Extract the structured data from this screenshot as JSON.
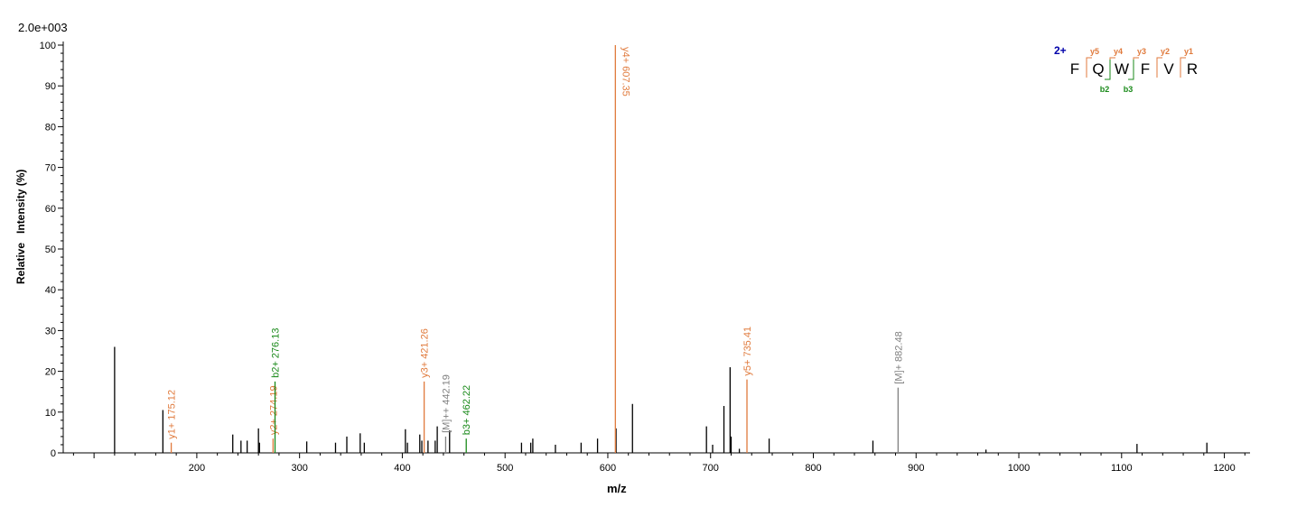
{
  "scale_label": "2.0e+003",
  "chart_data": {
    "type": "bar",
    "subtype": "mass-spectrum",
    "xlabel": "m/z",
    "ylabel": "Relative   Intensity (%)",
    "xlim": [
      70,
      1225
    ],
    "ylim": [
      0,
      100
    ],
    "x_ticks": [
      200,
      300,
      400,
      500,
      600,
      700,
      800,
      900,
      1000,
      1100,
      1200
    ],
    "y_ticks": [
      0,
      10,
      20,
      30,
      40,
      50,
      60,
      70,
      80,
      90,
      100
    ],
    "grid": false,
    "colors": {
      "y": "#e07a3c",
      "b": "#1a8a1a",
      "M": "#808080",
      "unlabeled": "#000000",
      "charge": "#0000aa"
    },
    "peaks": [
      {
        "mz": 120,
        "intensity": 26
      },
      {
        "mz": 167,
        "intensity": 10.5
      },
      {
        "mz": 235,
        "intensity": 4.5
      },
      {
        "mz": 243,
        "intensity": 3
      },
      {
        "mz": 249,
        "intensity": 3
      },
      {
        "mz": 260,
        "intensity": 6
      },
      {
        "mz": 261,
        "intensity": 2.5
      },
      {
        "mz": 307,
        "intensity": 2.8
      },
      {
        "mz": 335,
        "intensity": 2.5
      },
      {
        "mz": 346,
        "intensity": 4
      },
      {
        "mz": 359,
        "intensity": 4.8
      },
      {
        "mz": 363,
        "intensity": 2.5
      },
      {
        "mz": 403,
        "intensity": 5.8
      },
      {
        "mz": 405,
        "intensity": 2.5
      },
      {
        "mz": 417,
        "intensity": 4.5
      },
      {
        "mz": 419,
        "intensity": 3
      },
      {
        "mz": 425,
        "intensity": 3
      },
      {
        "mz": 432,
        "intensity": 3
      },
      {
        "mz": 434,
        "intensity": 6.5
      },
      {
        "mz": 446,
        "intensity": 5.5
      },
      {
        "mz": 516,
        "intensity": 2.5
      },
      {
        "mz": 525,
        "intensity": 2.5
      },
      {
        "mz": 527,
        "intensity": 3.5
      },
      {
        "mz": 549,
        "intensity": 2
      },
      {
        "mz": 574,
        "intensity": 2.5
      },
      {
        "mz": 590,
        "intensity": 3.5
      },
      {
        "mz": 608,
        "intensity": 6
      },
      {
        "mz": 624,
        "intensity": 12
      },
      {
        "mz": 696,
        "intensity": 6.5
      },
      {
        "mz": 702,
        "intensity": 2
      },
      {
        "mz": 713,
        "intensity": 11.5
      },
      {
        "mz": 719,
        "intensity": 21
      },
      {
        "mz": 720,
        "intensity": 4
      },
      {
        "mz": 728,
        "intensity": 1
      },
      {
        "mz": 757,
        "intensity": 3.5
      },
      {
        "mz": 858,
        "intensity": 3
      },
      {
        "mz": 968,
        "intensity": 0.8
      },
      {
        "mz": 1115,
        "intensity": 2.2
      },
      {
        "mz": 1183,
        "intensity": 2.5
      }
    ],
    "annotated_peaks": [
      {
        "mz": 175.12,
        "intensity": 2.5,
        "label": "y1+ 175.12",
        "kind": "y"
      },
      {
        "mz": 274.19,
        "intensity": 3.5,
        "label": "y2+ 274.19",
        "kind": "y",
        "leader_to": "b2"
      },
      {
        "mz": 276.13,
        "intensity": 17.5,
        "label": "b2+ 276.13",
        "kind": "b",
        "id": "b2"
      },
      {
        "mz": 421.26,
        "intensity": 17.5,
        "label": "y3+ 421.26",
        "kind": "y"
      },
      {
        "mz": 442.19,
        "intensity": 4,
        "label": "[M]++ 442.19",
        "kind": "M"
      },
      {
        "mz": 462.22,
        "intensity": 3.5,
        "label": "b3+ 462.22",
        "kind": "b"
      },
      {
        "mz": 607.35,
        "intensity": 100,
        "label": "y4+ 607.35",
        "kind": "y"
      },
      {
        "mz": 735.41,
        "intensity": 18,
        "label": "y5+ 735.41",
        "kind": "y"
      },
      {
        "mz": 882.48,
        "intensity": 16,
        "label": "[M]+ 882.48",
        "kind": "M"
      }
    ],
    "sequence": {
      "charge": "2+",
      "residues": [
        "F",
        "Q",
        "W",
        "F",
        "V",
        "R"
      ],
      "y_ions": [
        {
          "label": "y5",
          "after_index": 0
        },
        {
          "label": "y4",
          "after_index": 1
        },
        {
          "label": "y3",
          "after_index": 2
        },
        {
          "label": "y2",
          "after_index": 3
        },
        {
          "label": "y1",
          "after_index": 4
        }
      ],
      "b_ions": [
        {
          "label": "b2",
          "after_index": 1
        },
        {
          "label": "b3",
          "after_index": 2
        }
      ]
    }
  }
}
